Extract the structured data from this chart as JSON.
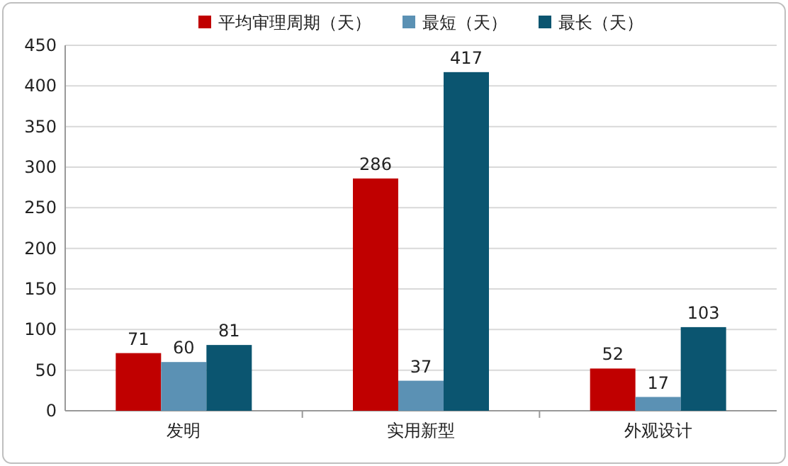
{
  "chart_data": {
    "type": "bar",
    "categories": [
      "发明",
      "实用新型",
      "外观设计"
    ],
    "series": [
      {
        "name": "平均审理周期（天）",
        "color": "#c00000",
        "values": [
          71,
          286,
          52
        ]
      },
      {
        "name": "最短（天）",
        "color": "#5b91b4",
        "values": [
          60,
          37,
          17
        ]
      },
      {
        "name": "最长（天）",
        "color": "#0b5570",
        "values": [
          81,
          417,
          103
        ]
      }
    ],
    "ylim": [
      0,
      450
    ],
    "yticks": [
      0,
      50,
      100,
      150,
      200,
      250,
      300,
      350,
      400,
      450
    ],
    "grid": "y",
    "legend": "top",
    "data_labels": true
  }
}
